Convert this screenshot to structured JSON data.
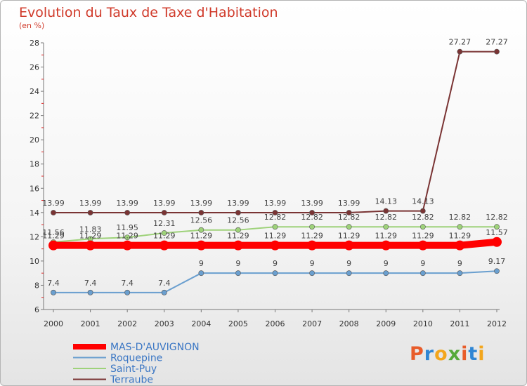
{
  "title": "Evolution du Taux de Taxe d'Habitation",
  "subtitle": "(en %)",
  "logo_text": "Proxiti",
  "chart_data": {
    "type": "line",
    "x": [
      2000,
      2001,
      2002,
      2003,
      2004,
      2005,
      2006,
      2007,
      2008,
      2009,
      2010,
      2011,
      2012
    ],
    "ylim": [
      6,
      28
    ],
    "yticks": [
      6,
      8,
      10,
      12,
      14,
      16,
      18,
      20,
      22,
      24,
      26,
      28
    ],
    "grid": false,
    "legend_position": "bottom-left",
    "series": [
      {
        "name": "MAS-D'AUVIGNON",
        "color": "#ff0000",
        "values": [
          11.29,
          11.29,
          11.29,
          11.29,
          11.29,
          11.29,
          11.29,
          11.29,
          11.29,
          11.29,
          11.29,
          11.29,
          11.57
        ],
        "labels": [
          "11.29",
          "11.29",
          "11.29",
          "11.29",
          "11.29",
          "11.29",
          "11.29",
          "11.29",
          "11.29",
          "11.29",
          "11.29",
          "11.29",
          "11.57"
        ]
      },
      {
        "name": "Roquepine",
        "color": "#6a9fcf",
        "values": [
          7.4,
          7.4,
          7.4,
          7.4,
          9,
          9,
          9,
          9,
          9,
          9,
          9,
          9,
          9.17
        ],
        "labels": [
          "7.4",
          "7.4",
          "7.4",
          "7.4",
          "9",
          "9",
          "9",
          "9",
          "9",
          "9",
          "9",
          "9",
          "9.17"
        ]
      },
      {
        "name": "Saint-Puy",
        "color": "#9ed27a",
        "values": [
          11.56,
          11.83,
          11.95,
          12.31,
          12.56,
          12.56,
          12.82,
          12.82,
          12.82,
          12.82,
          12.82,
          12.82,
          12.82
        ],
        "labels": [
          "11.56",
          "11.83",
          "11.95",
          "12.31",
          "12.56",
          "12.56",
          "12.82",
          "12.82",
          "12.82",
          "12.82",
          "12.82",
          "12.82",
          "12.82"
        ]
      },
      {
        "name": "Terraube",
        "color": "#7a3434",
        "values": [
          13.99,
          13.99,
          13.99,
          13.99,
          13.99,
          13.99,
          13.99,
          13.99,
          13.99,
          14.13,
          14.13,
          27.27,
          27.27
        ],
        "labels": [
          "13.99",
          "13.99",
          "13.99",
          "13.99",
          "13.99",
          "13.99",
          "13.99",
          "13.99",
          "13.99",
          "14.13",
          "14.13",
          "27.27",
          "27.27"
        ]
      }
    ]
  }
}
